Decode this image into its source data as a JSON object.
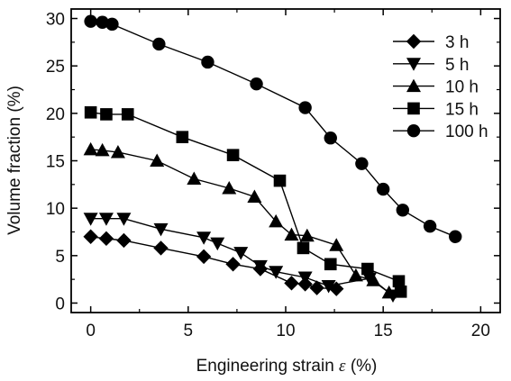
{
  "chart_data": {
    "type": "line",
    "xlabel": "Engineering strain",
    "xlabel_symbol": "ε",
    "xlabel_unit": "(%)",
    "ylabel": "Volume fraction (%)",
    "xlim": [
      -1,
      21
    ],
    "ylim": [
      -1,
      31
    ],
    "xticks": [
      0,
      5,
      10,
      15,
      20
    ],
    "yticks": [
      0,
      5,
      10,
      15,
      20,
      25,
      30
    ],
    "grid": false,
    "legend_position": "top-right",
    "series": [
      {
        "name": "3 h",
        "marker": "diamond",
        "x": [
          0,
          0.8,
          1.7,
          3.6,
          5.8,
          7.3,
          8.7,
          10.3,
          11.0,
          11.6,
          12.6
        ],
        "y": [
          7.0,
          6.8,
          6.6,
          5.8,
          4.9,
          4.1,
          3.6,
          2.1,
          2.0,
          1.6,
          1.5
        ]
      },
      {
        "name": "5 h",
        "marker": "triangle-down",
        "x": [
          0,
          0.8,
          1.7,
          3.6,
          5.8,
          6.5,
          7.7,
          8.7,
          9.5,
          11.0,
          12.2,
          14.3,
          15.5
        ],
        "y": [
          8.9,
          8.9,
          8.9,
          7.8,
          6.9,
          6.3,
          5.3,
          3.9,
          3.3,
          2.7,
          1.8,
          2.6,
          0.8
        ]
      },
      {
        "name": "10 h",
        "marker": "triangle-up",
        "x": [
          0,
          0.6,
          1.4,
          3.4,
          5.3,
          7.1,
          8.4,
          9.5,
          10.3,
          11.1,
          12.6,
          13.6,
          14.5,
          15.3
        ],
        "y": [
          16.2,
          16.1,
          15.9,
          15.0,
          13.1,
          12.1,
          11.2,
          8.6,
          7.2,
          7.1,
          6.1,
          2.9,
          2.4,
          1.1
        ]
      },
      {
        "name": "15 h",
        "marker": "square",
        "x": [
          0,
          0.8,
          1.9,
          4.7,
          7.3,
          9.7,
          10.9,
          12.3,
          14.2,
          15.8,
          15.9
        ],
        "y": [
          20.1,
          19.9,
          19.9,
          17.5,
          15.6,
          12.9,
          5.8,
          4.1,
          3.6,
          2.3,
          1.2
        ]
      },
      {
        "name": "100 h",
        "marker": "circle",
        "x": [
          0,
          0.6,
          1.1,
          3.5,
          6.0,
          8.5,
          11.0,
          12.3,
          13.9,
          15.0,
          16.0,
          17.4,
          18.7
        ],
        "y": [
          29.7,
          29.6,
          29.4,
          27.3,
          25.4,
          23.1,
          20.6,
          17.4,
          14.7,
          12.0,
          9.8,
          8.1,
          7.0
        ]
      }
    ]
  }
}
